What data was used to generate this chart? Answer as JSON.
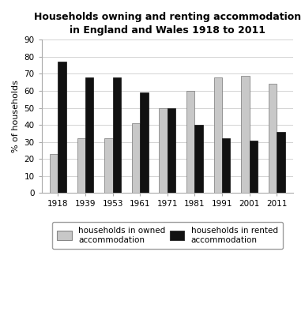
{
  "title_line1": "Households owning and renting accommodation",
  "title_line2": "in England and Wales 1918 to 2011",
  "years": [
    "1918",
    "1939",
    "1953",
    "1961",
    "1971",
    "1981",
    "1991",
    "2001",
    "2011"
  ],
  "owned": [
    23,
    32,
    32,
    41,
    50,
    60,
    68,
    69,
    64
  ],
  "rented": [
    77,
    68,
    68,
    59,
    50,
    40,
    32,
    31,
    36
  ],
  "owned_color": "#c8c8c8",
  "rented_color": "#111111",
  "ylabel": "% of households",
  "ylim": [
    0,
    90
  ],
  "yticks": [
    0,
    10,
    20,
    30,
    40,
    50,
    60,
    70,
    80,
    90
  ],
  "legend_owned": "households in owned\naccommodation",
  "legend_rented": "households in rented\naccommodation",
  "bar_width": 0.3,
  "background_color": "#ffffff",
  "title_fontsize": 9,
  "axis_fontsize": 8,
  "tick_fontsize": 7.5,
  "legend_fontsize": 7.5
}
